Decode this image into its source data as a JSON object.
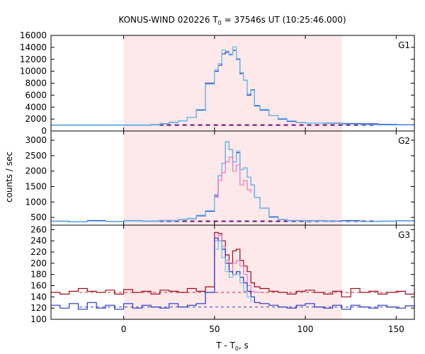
{
  "figure": {
    "title_main": "KONUS-WIND 020226 T",
    "title_sub": "0",
    "title_rest": " = 37546s UT (10:25:46.000)",
    "ylabel": "counts / sec",
    "xlabel_main": "T - T",
    "xlabel_sub": "0",
    "xlabel_rest": ", s"
  },
  "chart_data": {
    "type": "line",
    "title": "KONUS-WIND 020226 T0 = 37546s UT (10:25:46.000)",
    "xlabel": "T - T0, s",
    "ylabel": "counts / sec",
    "xlim": [
      -40,
      160
    ],
    "x_ticks": [
      0,
      50,
      100,
      150
    ],
    "shaded_interval": [
      0,
      120
    ],
    "colors": {
      "shade": "#fde8ea",
      "dark_red": "#9e0b1a",
      "pink": "#e27bc0",
      "blue": "#2233c8",
      "cyan": "#66c4ee",
      "purple_dashed": "#6e0b6e",
      "red_dashed": "#d42030",
      "blue_dashed": "#3344cc"
    },
    "panels": [
      {
        "name": "G1",
        "ylim": [
          0,
          16000
        ],
        "yticks": [
          0,
          2000,
          4000,
          6000,
          8000,
          10000,
          12000,
          14000,
          16000
        ],
        "background": 1000,
        "series": [
          {
            "color": "#2233c8",
            "x": [
              -40,
              15,
              20,
              25,
              30,
              35,
              40,
              45,
              50,
              52,
              54,
              56,
              58,
              60,
              62,
              64,
              66,
              68,
              70,
              72,
              75,
              80,
              85,
              90,
              95,
              100,
              110,
              120,
              130,
              140,
              150,
              160
            ],
            "y": [
              1000,
              1050,
              1200,
              1450,
              1700,
              2300,
              3500,
              8000,
              10000,
              11000,
              12900,
              13200,
              12800,
              13500,
              12000,
              9600,
              8500,
              6000,
              6900,
              4200,
              3500,
              2600,
              2000,
              1600,
              1400,
              1350,
              1300,
              1250,
              1200,
              1100,
              1050,
              1050
            ]
          },
          {
            "color": "#66c4ee",
            "x": [
              -40,
              15,
              20,
              25,
              30,
              35,
              40,
              45,
              50,
              52,
              54,
              56,
              58,
              60,
              62,
              64,
              66,
              68,
              70,
              72,
              75,
              80,
              85,
              90,
              95,
              100,
              110,
              120,
              130,
              140,
              150,
              160
            ],
            "y": [
              950,
              1000,
              1150,
              1400,
              1700,
              2300,
              3600,
              7800,
              10300,
              11300,
              13600,
              13400,
              12700,
              14100,
              12100,
              9800,
              8500,
              6200,
              6800,
              4300,
              3600,
              2600,
              2100,
              1700,
              1450,
              1350,
              1250,
              1150,
              1050,
              1000,
              980,
              980
            ]
          }
        ]
      },
      {
        "name": "G2",
        "ylim": [
          250,
          3300
        ],
        "yticks": [
          500,
          1000,
          1500,
          2000,
          2500,
          3000
        ],
        "background": 375,
        "series": [
          {
            "color": "#2233c8",
            "x": [
              -40,
              -30,
              -20,
              -10,
              0,
              10,
              20,
              30,
              35,
              40,
              45,
              50,
              52,
              54,
              56,
              58,
              60,
              62,
              64,
              66,
              68,
              70,
              72,
              75,
              80,
              85,
              90,
              100,
              110,
              120,
              130,
              140,
              150,
              160
            ],
            "y": [
              380,
              360,
              400,
              370,
              390,
              380,
              400,
              430,
              460,
              550,
              700,
              1200,
              1850,
              2250,
              2950,
              2700,
              2300,
              2600,
              2050,
              2100,
              1800,
              1550,
              1150,
              800,
              520,
              430,
              400,
              390,
              380,
              400,
              370,
              380,
              390,
              380
            ]
          },
          {
            "color": "#66c4ee",
            "x": [
              -40,
              -30,
              -20,
              -10,
              0,
              10,
              20,
              30,
              35,
              40,
              45,
              50,
              52,
              54,
              56,
              58,
              60,
              62,
              64,
              66,
              68,
              70,
              72,
              75,
              80,
              85,
              90,
              100,
              110,
              120,
              130,
              140,
              150,
              160
            ],
            "y": [
              370,
              350,
              380,
              360,
              380,
              370,
              390,
              420,
              470,
              570,
              720,
              1250,
              1850,
              2250,
              2950,
              2700,
              2300,
              2650,
              2050,
              2100,
              1800,
              1550,
              1150,
              800,
              500,
              420,
              390,
              380,
              370,
              380,
              360,
              370,
              380,
              370
            ]
          },
          {
            "color": "#e27bc0",
            "x": [
              50,
              52,
              54,
              56,
              58,
              60,
              62,
              64,
              66,
              68,
              70
            ],
            "y": [
              1150,
              1700,
              1950,
              2300,
              2450,
              2000,
              2200,
              1550,
              1700,
              1400,
              1300
            ]
          }
        ]
      },
      {
        "name": "G3",
        "ylim": [
          100,
          268
        ],
        "yticks": [
          100,
          120,
          140,
          160,
          180,
          200,
          220,
          240,
          260
        ],
        "background_red": 148,
        "background_blue": 122,
        "series": [
          {
            "color": "#9e0b1a",
            "x": [
              -40,
              -35,
              -30,
              -25,
              -20,
              -15,
              -10,
              -5,
              0,
              5,
              10,
              15,
              20,
              25,
              30,
              35,
              40,
              45,
              50,
              52,
              54,
              56,
              58,
              60,
              62,
              64,
              66,
              68,
              70,
              72,
              75,
              80,
              85,
              90,
              95,
              100,
              105,
              110,
              115,
              120,
              125,
              130,
              135,
              140,
              145,
              150,
              155,
              160
            ],
            "y": [
              148,
              145,
              150,
              155,
              150,
              148,
              152,
              145,
              153,
              148,
              150,
              145,
              152,
              150,
              148,
              155,
              150,
              158,
              255,
              253,
              240,
              215,
              200,
              222,
              225,
              205,
              195,
              185,
              165,
              158,
              155,
              150,
              148,
              145,
              150,
              152,
              148,
              145,
              150,
              140,
              155,
              148,
              150,
              145,
              148,
              150,
              145,
              150
            ]
          },
          {
            "color": "#e27bc0",
            "x": [
              50,
              52,
              54,
              56,
              58,
              60,
              62,
              64,
              66,
              68,
              70,
              72,
              75
            ],
            "y": [
              240,
              250,
              230,
              205,
              185,
              200,
              205,
              195,
              180,
              160,
              150,
              148,
              148
            ]
          },
          {
            "color": "#2233c8",
            "x": [
              -40,
              -35,
              -30,
              -25,
              -20,
              -15,
              -10,
              -5,
              0,
              5,
              10,
              15,
              20,
              25,
              30,
              35,
              40,
              45,
              50,
              52,
              54,
              56,
              58,
              60,
              62,
              64,
              66,
              68,
              70,
              72,
              75,
              80,
              85,
              90,
              95,
              100,
              105,
              110,
              115,
              120,
              125,
              130,
              135,
              140,
              145,
              150,
              155,
              160
            ],
            "y": [
              125,
              120,
              128,
              118,
              130,
              120,
              125,
              118,
              128,
              120,
              125,
              122,
              120,
              128,
              122,
              125,
              128,
              148,
              245,
              240,
              225,
              200,
              185,
              180,
              185,
              175,
              165,
              150,
              140,
              130,
              128,
              125,
              122,
              120,
              125,
              128,
              122,
              120,
              125,
              118,
              125,
              122,
              120,
              125,
              122,
              120,
              124,
              122
            ]
          },
          {
            "color": "#66c4ee",
            "x": [
              50,
              52,
              54,
              56,
              58,
              60,
              62,
              64,
              66,
              68,
              70
            ],
            "y": [
              225,
              240,
              210,
              185,
              175,
              180,
              180,
              165,
              150,
              140,
              130
            ]
          }
        ]
      }
    ]
  }
}
